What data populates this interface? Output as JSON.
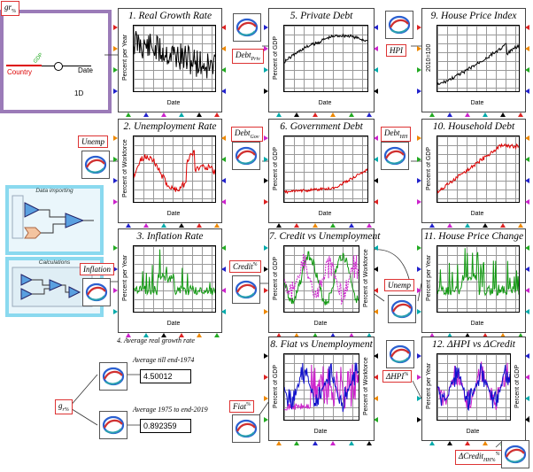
{
  "godley": {
    "var": "gr",
    "var_sub": "%",
    "country": "Country",
    "gdp": "GDP",
    "date": "Date",
    "dim": "1D"
  },
  "groups": [
    {
      "title": "Data importing"
    },
    {
      "title": "Calculations"
    }
  ],
  "panels": [
    {
      "title": "1. Real Growth Rate",
      "ylabel": "Percent per Year",
      "xlabel": "Date",
      "color": "#000000"
    },
    {
      "title": "2. Unemployment Rate",
      "ylabel": "Percent of Workforce",
      "xlabel": "Date",
      "color": "#dd0000"
    },
    {
      "title": "3. Inflation Rate",
      "ylabel": "Percent per Year",
      "xlabel": "Date",
      "color": "#119911"
    },
    {
      "title": "5. Private Debt",
      "ylabel": "Percent of GDP",
      "xlabel": "Date",
      "color": "#000000"
    },
    {
      "title": "6. Government Debt",
      "ylabel": "Percent of GDP",
      "xlabel": "Date",
      "color": "#dd0000"
    },
    {
      "title": "7. Credit vs Unemployment",
      "ylabel": "Percent of GDP",
      "ylabel2": "Percent of Workforce",
      "xlabel": "Date",
      "color": "#119911",
      "color2": "#cc22cc"
    },
    {
      "title": "8. Fiat vs Unemployment",
      "ylabel": "Percent of GDP",
      "ylabel2": "Percent of Workforce",
      "xlabel": "Date",
      "color": "#cc22cc",
      "color2": "#1111cc"
    },
    {
      "title": "9. House Price Index",
      "ylabel": "2010=100",
      "xlabel": "Date",
      "color": "#000000"
    },
    {
      "title": "10. Household Debt",
      "ylabel": "Percent of GDP",
      "xlabel": "Date",
      "color": "#dd0000"
    },
    {
      "title": "11. House Price Change",
      "ylabel": "Percent per Year",
      "xlabel": "Date",
      "color": "#119911"
    },
    {
      "title": "12. ΔHPI vs ΔCredit",
      "ylabel": "Percent per Year",
      "ylabel2": "Percent of GDP",
      "xlabel": "Date",
      "color": "#cc22cc",
      "color2": "#1111cc"
    }
  ],
  "vars": {
    "debt_priv": "Debt",
    "debt_priv_sub": "Priv",
    "debt_gov": "Debt",
    "debt_gov_sub": "Gov",
    "debt_hh": "Debt",
    "debt_hh_sub": "HH",
    "hpi": "HPI",
    "unemp1": "Unemp",
    "unemp2": "Unemp",
    "inflation": "Inflation",
    "credit": "Credit",
    "credit_sub": "%",
    "fiat": "Fiat",
    "fiat_sub": "%",
    "dhpi": "ΔHPI",
    "dhpi_sub": "%",
    "dcredit": "ΔCredit",
    "dcredit_sub": "HH%",
    "gr": "g",
    "gr_sub": "r%"
  },
  "avg": {
    "heading": "4. Average real growth rate",
    "label1": "Average till end-1974",
    "value1": "4.50012",
    "label2": "Average 1975 to end-2019",
    "value2": "0.892359"
  }
}
